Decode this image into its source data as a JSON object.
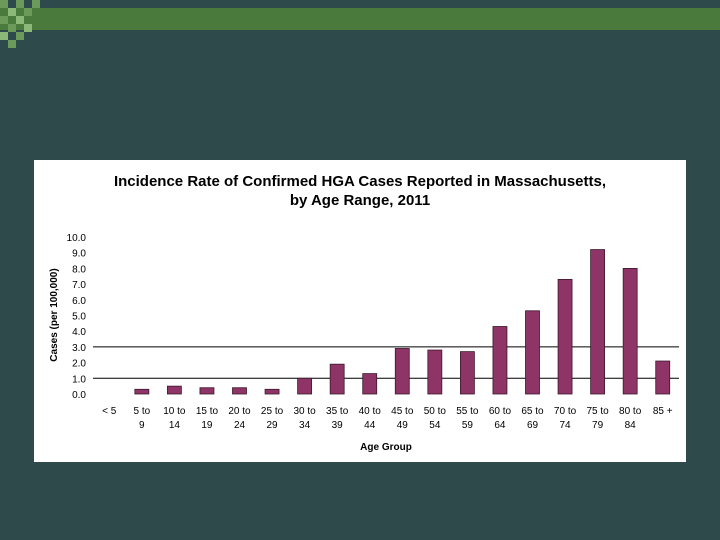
{
  "colors": {
    "background": "#2f4a4a",
    "top_stripe": "#4a7a3c",
    "bar": "#8f3466",
    "bar_stroke": "#3a1a2a",
    "card": "#ffffff"
  },
  "chart_data": {
    "type": "bar",
    "title_line1": "Incidence Rate of Confirmed HGA Cases Reported in Massachusetts,",
    "title_line2": "by Age Range, 2011",
    "xlabel": "Age Group",
    "ylabel": "Cases (per 100,000)",
    "ylim": [
      0,
      10
    ],
    "yticks": [
      "10.0",
      "9.0",
      "8.0",
      "7.0",
      "6.0",
      "5.0",
      "4.0",
      "3.0",
      "2.0",
      "1.0",
      "0.0"
    ],
    "reference_lines": [
      1.0,
      3.0
    ],
    "categories": [
      [
        "< 5",
        ""
      ],
      [
        "5 to",
        "9"
      ],
      [
        "10 to",
        "14"
      ],
      [
        "15 to",
        "19"
      ],
      [
        "20 to",
        "24"
      ],
      [
        "25 to",
        "29"
      ],
      [
        "30 to",
        "34"
      ],
      [
        "35 to",
        "39"
      ],
      [
        "40 to",
        "44"
      ],
      [
        "45 to",
        "49"
      ],
      [
        "50 to",
        "54"
      ],
      [
        "55 to",
        "59"
      ],
      [
        "60 to",
        "64"
      ],
      [
        "65 to",
        "69"
      ],
      [
        "70 to",
        "74"
      ],
      [
        "75 to",
        "79"
      ],
      [
        "80 to",
        "84"
      ],
      [
        "85 +",
        ""
      ]
    ],
    "values": [
      0,
      0.3,
      0.5,
      0.4,
      0.4,
      0.3,
      1.0,
      1.9,
      1.3,
      2.9,
      2.8,
      2.7,
      4.3,
      5.3,
      7.3,
      9.2,
      8.0,
      2.1
    ],
    "grid": false,
    "legend": "none"
  }
}
